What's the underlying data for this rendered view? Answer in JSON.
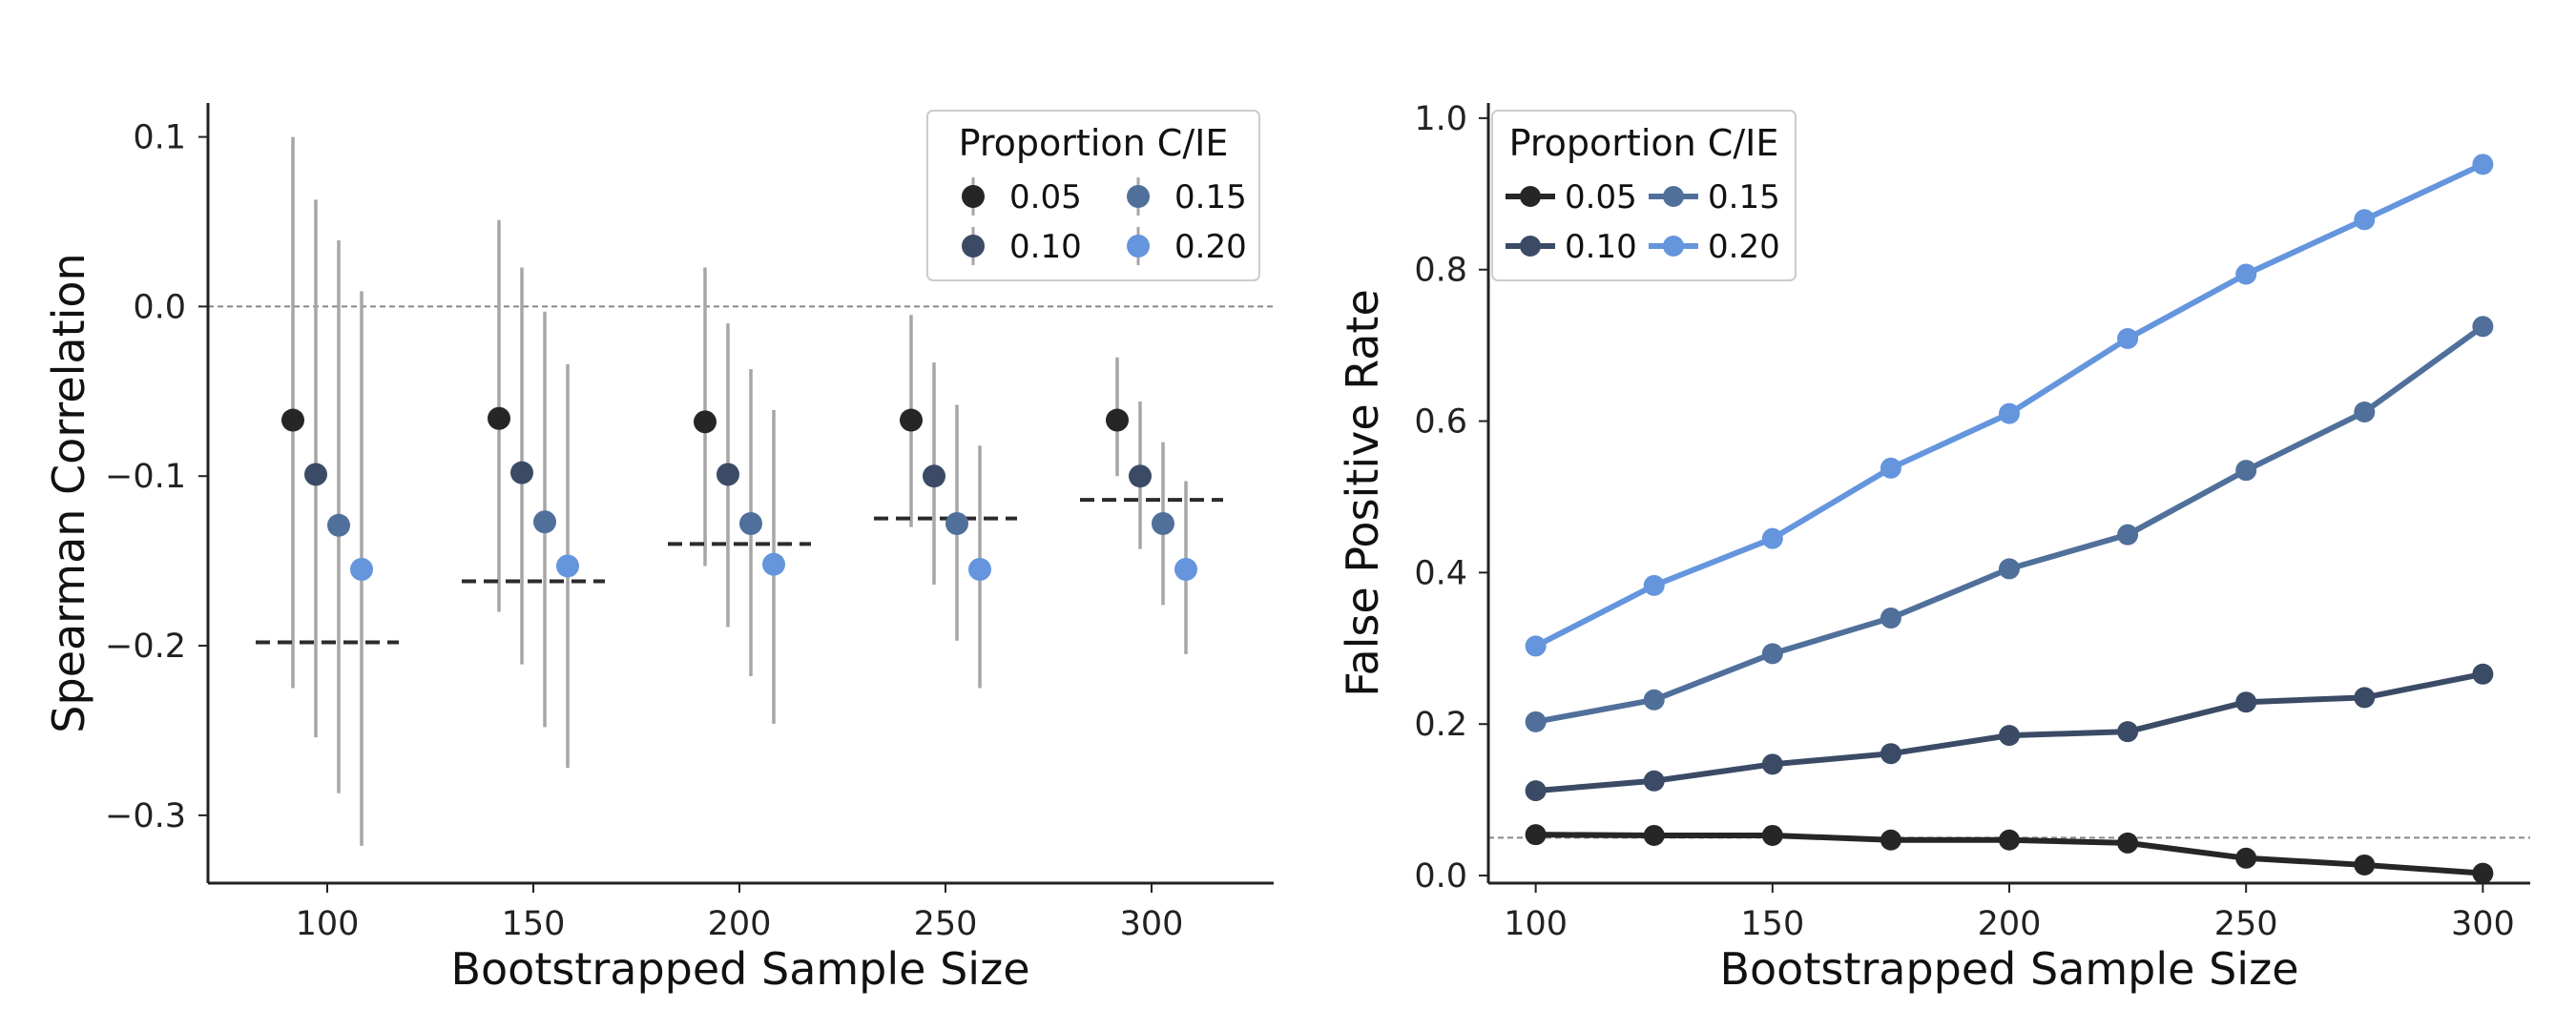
{
  "colors": {
    "0.05": "#262626",
    "0.10": "#3b4b66",
    "0.15": "#50709b",
    "0.20": "#6495dd",
    "errorbar": "#a6a6a6",
    "reference_line": "#888888",
    "axis": "#222222"
  },
  "chart_data": [
    {
      "type": "scatter",
      "subtype": "point-with-error-bars",
      "xlabel": "Bootstrapped Sample Size",
      "ylabel": "Spearman Correlation",
      "ylim": [
        -0.34,
        0.12
      ],
      "categories": [
        "100",
        "150",
        "200",
        "250",
        "300"
      ],
      "y_ticks": [
        0.1,
        0.0,
        -0.1,
        -0.2,
        -0.3
      ],
      "y_tick_labels": [
        "0.1",
        "0.0",
        "−0.1",
        "−0.2",
        "−0.3"
      ],
      "reference_line_y": 0.0,
      "legend": {
        "title": "Proportion C/IE",
        "entries": [
          "0.05",
          "0.10",
          "0.15",
          "0.20"
        ],
        "placement": "top-right",
        "ncol": 2
      },
      "series": [
        {
          "name": "0.05",
          "values": [
            -0.067,
            -0.066,
            -0.068,
            -0.067,
            -0.067
          ],
          "err_low": [
            -0.225,
            -0.18,
            -0.153,
            -0.13,
            -0.1
          ],
          "err_high": [
            0.1,
            0.051,
            0.023,
            -0.005,
            -0.03
          ]
        },
        {
          "name": "0.10",
          "values": [
            -0.099,
            -0.098,
            -0.099,
            -0.1,
            -0.1
          ],
          "err_low": [
            -0.254,
            -0.211,
            -0.189,
            -0.164,
            -0.143
          ],
          "err_high": [
            0.063,
            0.023,
            -0.01,
            -0.033,
            -0.056
          ]
        },
        {
          "name": "0.15",
          "values": [
            -0.129,
            -0.127,
            -0.128,
            -0.128,
            -0.128
          ],
          "err_low": [
            -0.287,
            -0.248,
            -0.218,
            -0.197,
            -0.176
          ],
          "err_high": [
            0.039,
            -0.003,
            -0.037,
            -0.058,
            -0.08
          ]
        },
        {
          "name": "0.20",
          "values": [
            -0.155,
            -0.153,
            -0.152,
            -0.155,
            -0.155
          ],
          "err_low": [
            -0.318,
            -0.272,
            -0.246,
            -0.225,
            -0.205
          ],
          "err_high": [
            0.009,
            -0.034,
            -0.061,
            -0.082,
            -0.103
          ]
        }
      ],
      "dashed_markers": {
        "values": [
          -0.198,
          -0.162,
          -0.14,
          -0.125,
          -0.114
        ]
      }
    },
    {
      "type": "line",
      "xlabel": "Bootstrapped Sample Size",
      "ylabel": "False Positive Rate",
      "ylim": [
        -0.01,
        1.02
      ],
      "xlim": [
        90,
        310
      ],
      "x": [
        100,
        125,
        150,
        175,
        200,
        225,
        250,
        275,
        300
      ],
      "x_ticks": [
        100,
        150,
        200,
        250,
        300
      ],
      "y_ticks": [
        0.0,
        0.2,
        0.4,
        0.6,
        0.8,
        1.0
      ],
      "y_tick_labels": [
        "0.0",
        "0.2",
        "0.4",
        "0.6",
        "0.8",
        "1.0"
      ],
      "reference_line_y": 0.05,
      "legend": {
        "title": "Proportion C/IE",
        "entries": [
          "0.05",
          "0.10",
          "0.15",
          "0.20"
        ],
        "placement": "top-left",
        "ncol": 2
      },
      "series": [
        {
          "name": "0.05",
          "values": [
            0.054,
            0.053,
            0.053,
            0.047,
            0.047,
            0.043,
            0.023,
            0.014,
            0.003
          ]
        },
        {
          "name": "0.10",
          "values": [
            0.112,
            0.125,
            0.147,
            0.161,
            0.185,
            0.19,
            0.229,
            0.235,
            0.266
          ]
        },
        {
          "name": "0.15",
          "values": [
            0.203,
            0.232,
            0.293,
            0.34,
            0.405,
            0.45,
            0.535,
            0.612,
            0.725
          ]
        },
        {
          "name": "0.20",
          "values": [
            0.303,
            0.383,
            0.445,
            0.538,
            0.61,
            0.709,
            0.794,
            0.866,
            0.939
          ]
        }
      ]
    }
  ]
}
